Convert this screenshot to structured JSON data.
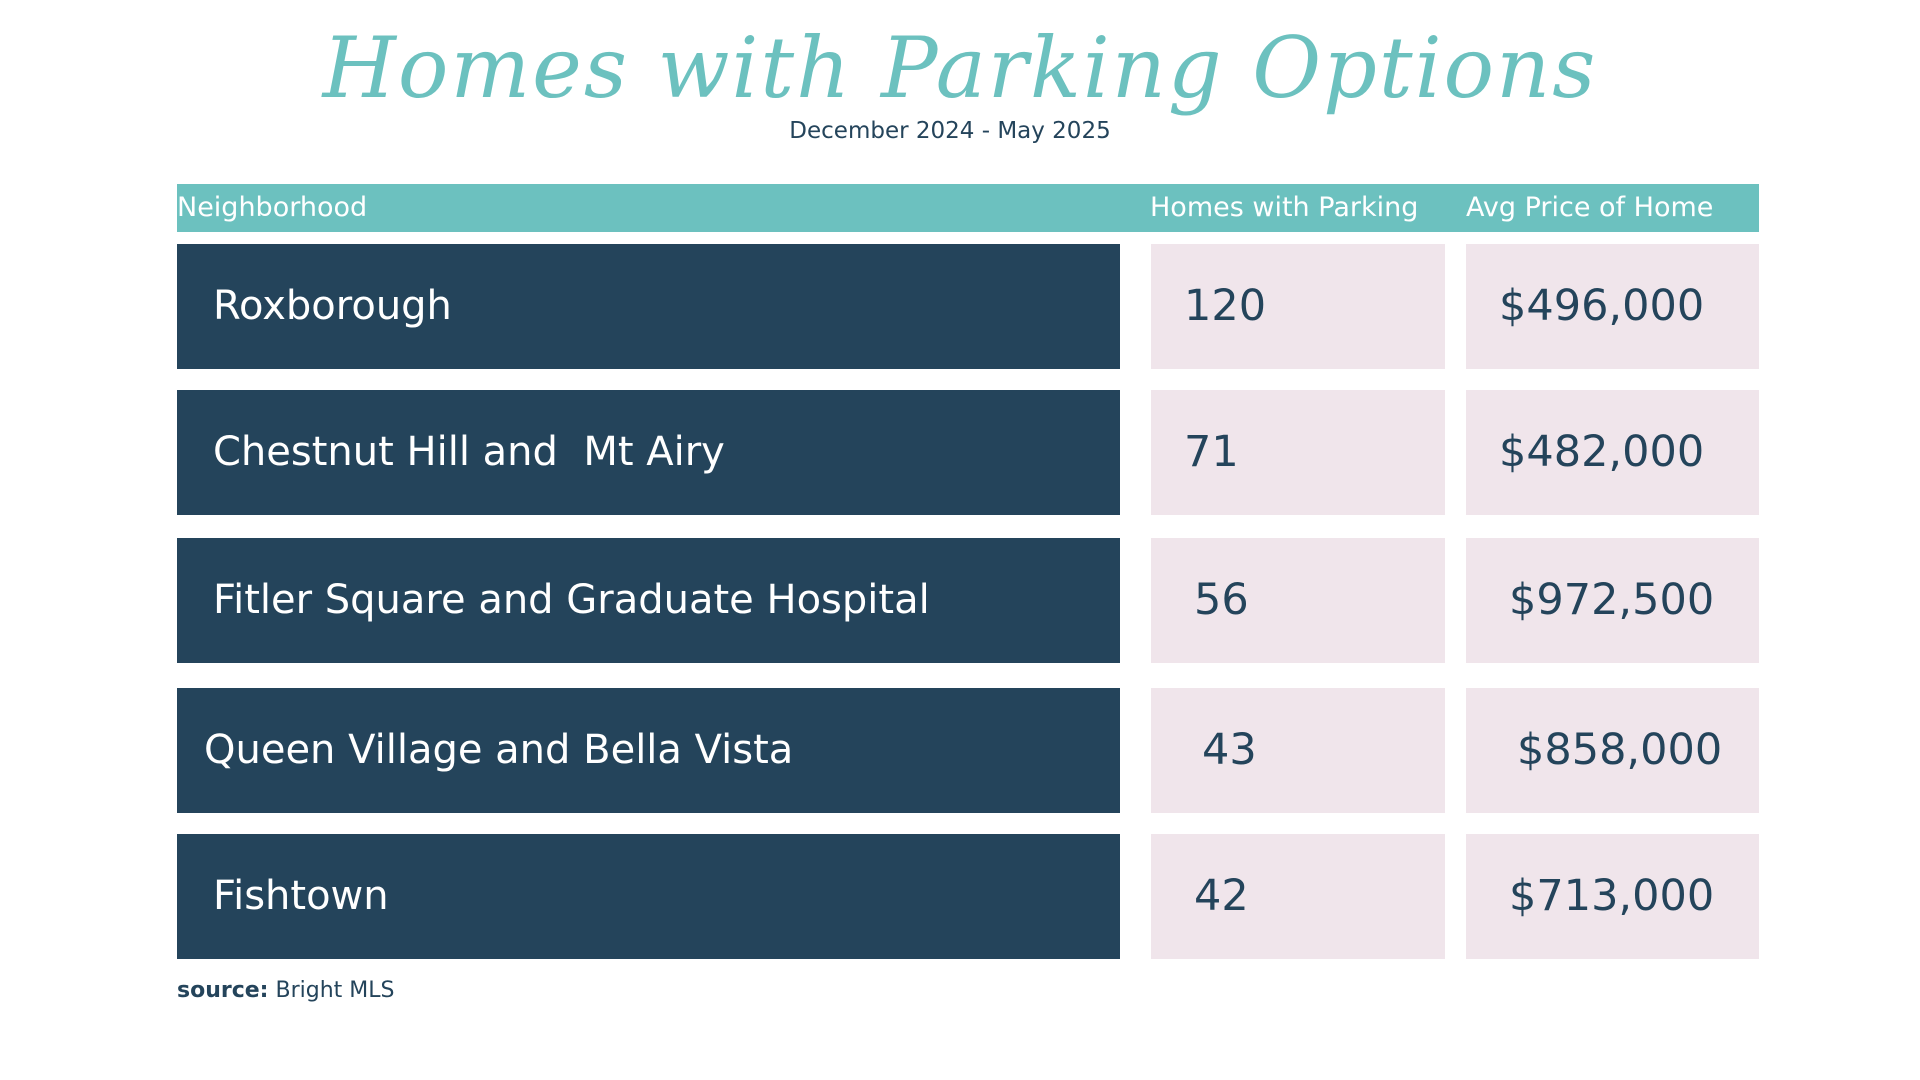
{
  "title": "Homes with Parking Options",
  "subtitle": "December 2024 - May 2025",
  "colors": {
    "header": "#6cc1bf",
    "name_cell": "#24445b",
    "value_cell": "#f0e5eb",
    "title": "#6cc1bf",
    "text_dark": "#24445b"
  },
  "source": {
    "label": "source:",
    "value": "Bright MLS"
  },
  "chart_data": {
    "type": "table",
    "title": "Homes with Parking Options",
    "subtitle": "December 2024 - May 2025",
    "columns": [
      "Neighborhood",
      "Homes with Parking",
      "Avg Price of Home"
    ],
    "rows": [
      {
        "neighborhood": "Roxborough",
        "homes": "120",
        "price": "$496,000"
      },
      {
        "neighborhood": "Chestnut Hill and  Mt Airy",
        "homes": "71",
        "price": "$482,000"
      },
      {
        "neighborhood": "Fitler Square and Graduate Hospital",
        "homes": "56",
        "price": "$972,500"
      },
      {
        "neighborhood": "Queen Village and Bella Vista",
        "homes": "43",
        "price": "$858,000"
      },
      {
        "neighborhood": "Fishtown",
        "homes": "42",
        "price": "$713,000"
      }
    ]
  }
}
